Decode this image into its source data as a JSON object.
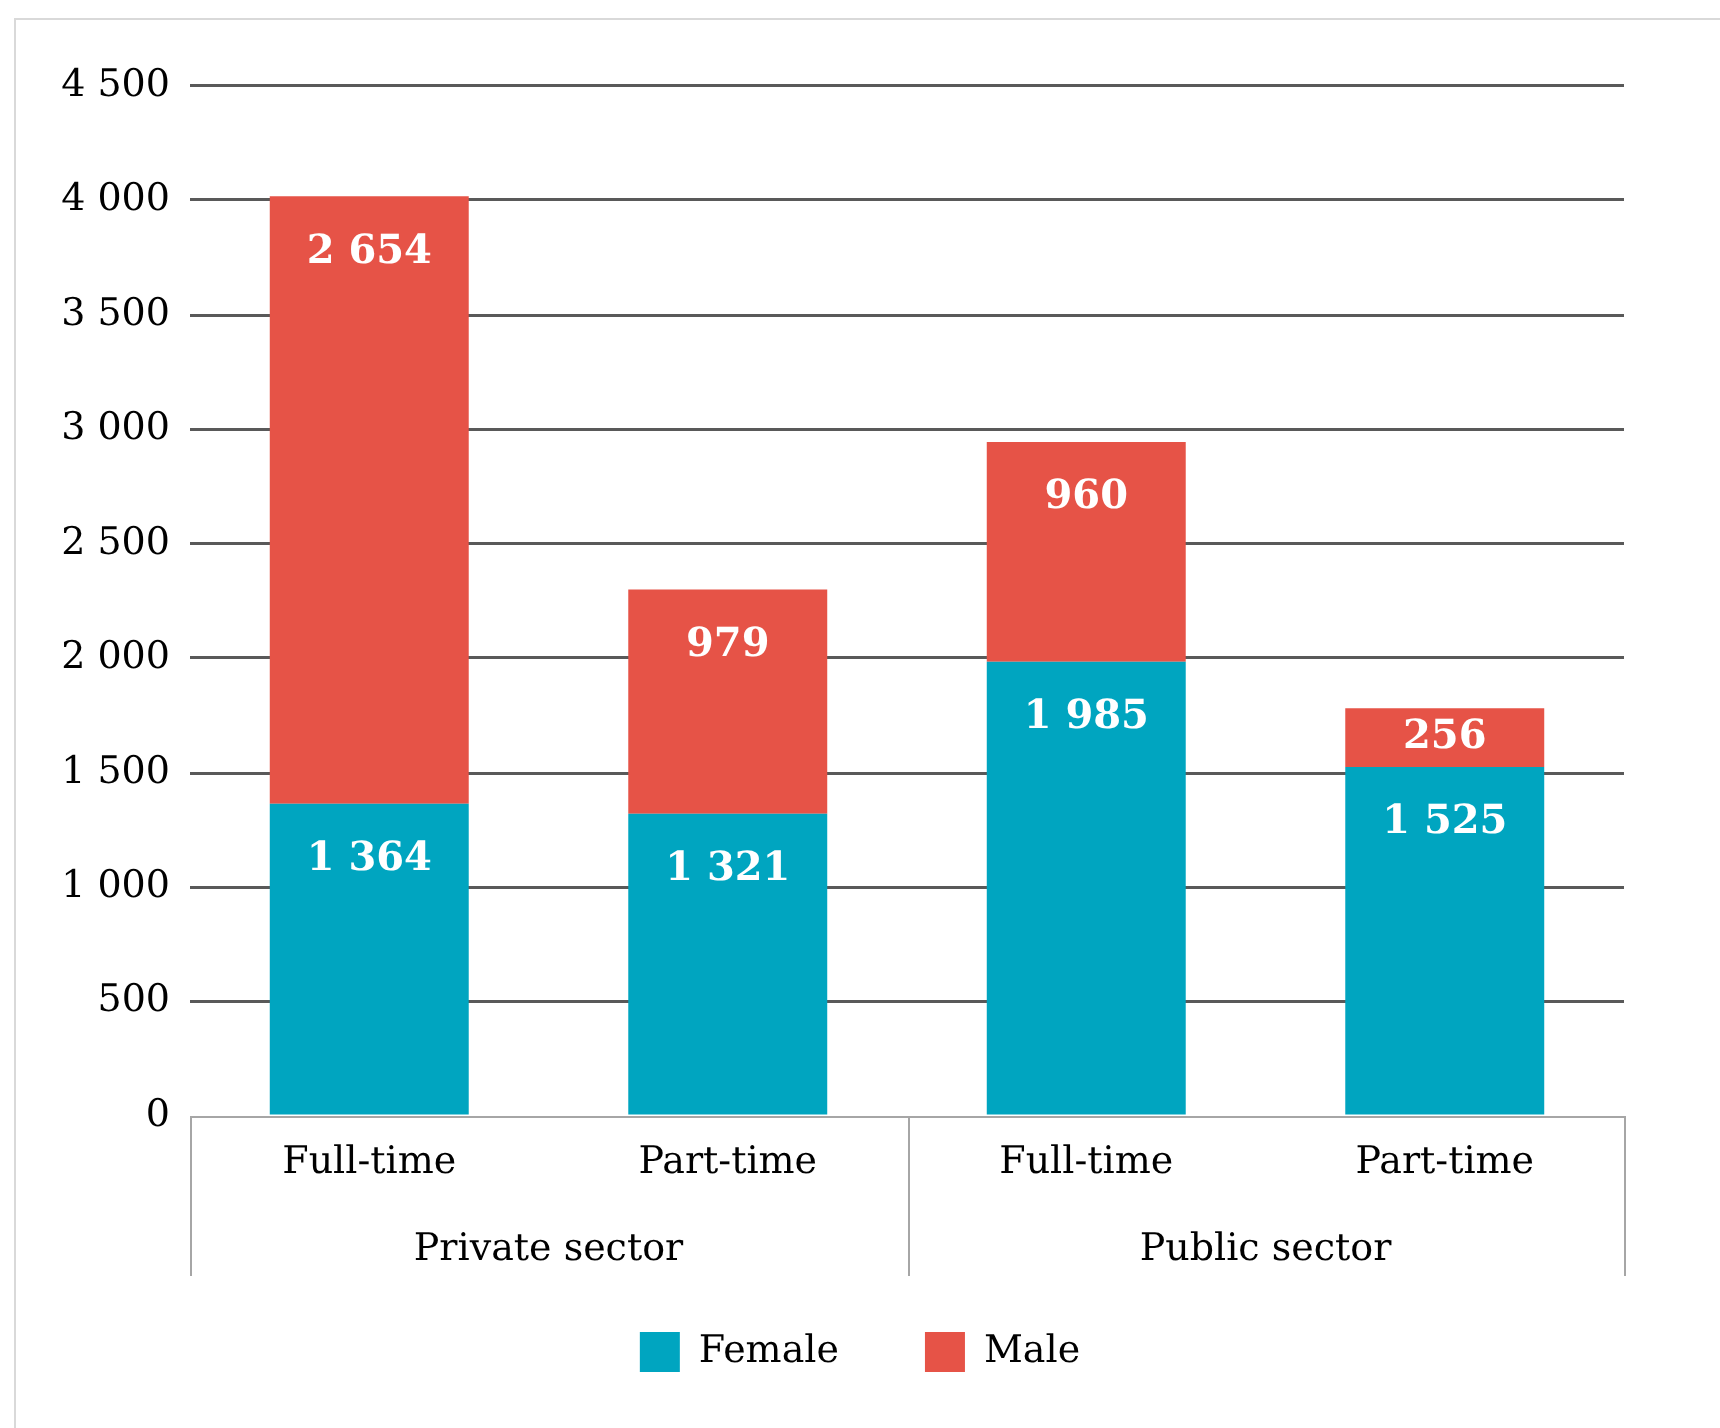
{
  "chart_data": {
    "type": "bar",
    "stacked": true,
    "categories": [
      "Full-time",
      "Part-time",
      "Full-time",
      "Part-time"
    ],
    "annotations": [
      "Private sector",
      "Public sector"
    ],
    "series": [
      {
        "name": "Female",
        "color": "#00a5c0",
        "values": [
          1364,
          1321,
          1985,
          1525
        ],
        "value_labels": [
          "1 364",
          "1 321",
          "1 985",
          "1 525"
        ]
      },
      {
        "name": "Male",
        "color": "#e65347",
        "values": [
          2654,
          979,
          960,
          256
        ],
        "value_labels": [
          "2 654",
          "979",
          "960",
          "256"
        ]
      }
    ],
    "ylim": [
      0,
      4500
    ],
    "yticks": [
      0,
      500,
      {
        "value": 1000,
        "label": "1 000"
      },
      {
        "value": 1500,
        "label": "1 500"
      },
      {
        "value": 2000,
        "label": "2 000"
      },
      {
        "value": 2500,
        "label": "2 500"
      },
      {
        "value": 3000,
        "label": "3 000"
      },
      {
        "value": 3500,
        "label": "3 500"
      },
      {
        "value": 4000,
        "label": "4 000"
      },
      {
        "value": 4500,
        "label": "4 500"
      }
    ],
    "grid": "y",
    "legend": "bottom"
  }
}
